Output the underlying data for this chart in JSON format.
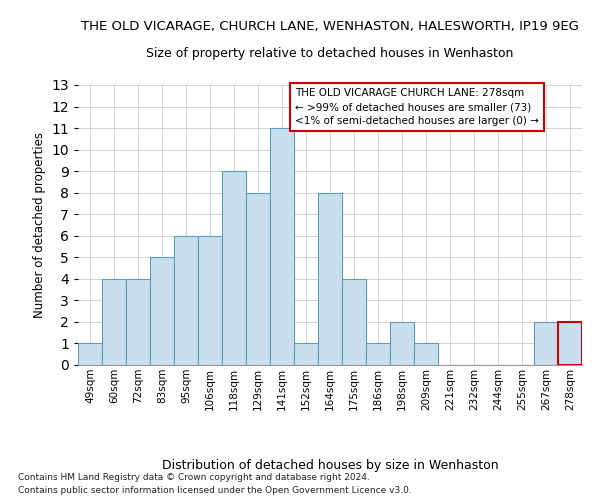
{
  "title_line1": "THE OLD VICARAGE, CHURCH LANE, WENHASTON, HALESWORTH, IP19 9EG",
  "title_line2": "Size of property relative to detached houses in Wenhaston",
  "xlabel": "Distribution of detached houses by size in Wenhaston",
  "ylabel": "Number of detached properties",
  "categories": [
    "49sqm",
    "60sqm",
    "72sqm",
    "83sqm",
    "95sqm",
    "106sqm",
    "118sqm",
    "129sqm",
    "141sqm",
    "152sqm",
    "164sqm",
    "175sqm",
    "186sqm",
    "198sqm",
    "209sqm",
    "221sqm",
    "232sqm",
    "244sqm",
    "255sqm",
    "267sqm",
    "278sqm"
  ],
  "values": [
    1,
    4,
    4,
    5,
    6,
    6,
    9,
    8,
    11,
    1,
    8,
    4,
    1,
    2,
    1,
    0,
    0,
    0,
    0,
    2,
    2
  ],
  "bar_color": "#c9dff0",
  "bar_edge_color": "#5b9fc0",
  "highlight_bar_index": 20,
  "highlight_bar_edge_color": "#cc0000",
  "ylim": [
    0,
    13
  ],
  "yticks": [
    0,
    1,
    2,
    3,
    4,
    5,
    6,
    7,
    8,
    9,
    10,
    11,
    12,
    13
  ],
  "annotation_text_line1": "THE OLD VICARAGE CHURCH LANE: 278sqm",
  "annotation_text_line2": "← >99% of detached houses are smaller (73)",
  "annotation_text_line3": "<1% of semi-detached houses are larger (0) →",
  "footer_line1": "Contains HM Land Registry data © Crown copyright and database right 2024.",
  "footer_line2": "Contains public sector information licensed under the Open Government Licence v3.0.",
  "grid_color": "#cccccc",
  "title1_fontsize": 9.5,
  "title2_fontsize": 9,
  "ylabel_fontsize": 8.5,
  "xlabel_fontsize": 9,
  "tick_fontsize": 7.5,
  "annot_fontsize": 7.5,
  "footer_fontsize": 6.5
}
